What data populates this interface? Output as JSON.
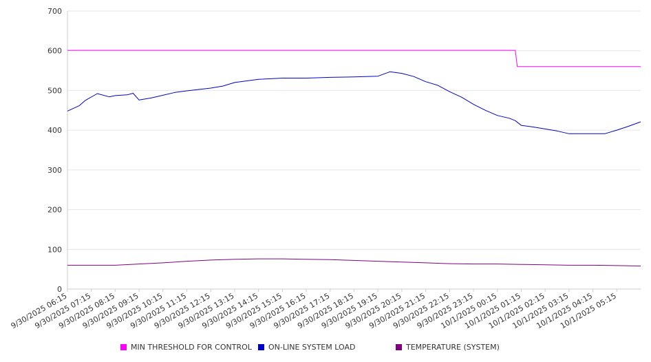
{
  "chart_data": {
    "type": "line",
    "title": "",
    "xlabel": "",
    "ylabel": "",
    "ylim": [
      0,
      700
    ],
    "yticks": [
      0,
      100,
      200,
      300,
      400,
      500,
      600,
      700
    ],
    "grid": "horizontal",
    "legend_position": "bottom",
    "x_range": [
      "9/30/2025 06:15",
      "10/1/2025 06:15"
    ],
    "categories": [
      "9/30/2025 06:15",
      "9/30/2025 07:15",
      "9/30/2025 08:15",
      "9/30/2025 09:15",
      "9/30/2025 10:15",
      "9/30/2025 11:15",
      "9/30/2025 12:15",
      "9/30/2025 13:15",
      "9/30/2025 14:15",
      "9/30/2025 15:15",
      "9/30/2025 16:15",
      "9/30/2025 17:15",
      "9/30/2025 18:15",
      "9/30/2025 19:15",
      "9/30/2025 20:15",
      "9/30/2025 21:15",
      "9/30/2025 22:15",
      "9/30/2025 23:15",
      "10/1/2025 00:15",
      "10/1/2025 01:15",
      "10/1/2025 02:15",
      "10/1/2025 03:15",
      "10/1/2025 04:15",
      "10/1/2025 05:15"
    ],
    "series": [
      {
        "name": "MIN THRESHOLD FOR CONTROL",
        "color": "#ff00ff",
        "points": [
          [
            "9/30/2025 06:15",
            601
          ],
          [
            "10/1/2025 01:00",
            601
          ],
          [
            "10/1/2025 01:05",
            560
          ],
          [
            "10/1/2025 06:15",
            560
          ]
        ]
      },
      {
        "name": "ON-LINE SYSTEM LOAD",
        "color": "#0000cc",
        "points": [
          [
            "9/30/2025 06:15",
            448
          ],
          [
            "9/30/2025 06:45",
            462
          ],
          [
            "9/30/2025 07:00",
            475
          ],
          [
            "9/30/2025 07:30",
            492
          ],
          [
            "9/30/2025 08:00",
            484
          ],
          [
            "9/30/2025 08:15",
            487
          ],
          [
            "9/30/2025 08:45",
            489
          ],
          [
            "9/30/2025 09:00",
            493
          ],
          [
            "9/30/2025 09:15",
            476
          ],
          [
            "9/30/2025 09:45",
            481
          ],
          [
            "9/30/2025 10:15",
            488
          ],
          [
            "9/30/2025 10:45",
            495
          ],
          [
            "9/30/2025 11:15",
            499
          ],
          [
            "9/30/2025 12:15",
            506
          ],
          [
            "9/30/2025 12:45",
            511
          ],
          [
            "9/30/2025 13:15",
            520
          ],
          [
            "9/30/2025 14:15",
            528
          ],
          [
            "9/30/2025 15:15",
            531
          ],
          [
            "9/30/2025 16:15",
            531
          ],
          [
            "9/30/2025 17:15",
            533
          ],
          [
            "9/30/2025 18:15",
            534
          ],
          [
            "9/30/2025 19:15",
            536
          ],
          [
            "9/30/2025 19:45",
            547
          ],
          [
            "9/30/2025 20:15",
            543
          ],
          [
            "9/30/2025 20:45",
            535
          ],
          [
            "9/30/2025 21:15",
            522
          ],
          [
            "9/30/2025 21:45",
            513
          ],
          [
            "9/30/2025 22:15",
            497
          ],
          [
            "9/30/2025 22:45",
            483
          ],
          [
            "9/30/2025 23:15",
            465
          ],
          [
            "9/30/2025 23:45",
            450
          ],
          [
            "10/1/2025 00:15",
            437
          ],
          [
            "10/1/2025 00:45",
            430
          ],
          [
            "10/1/2025 01:00",
            424
          ],
          [
            "10/1/2025 01:15",
            412
          ],
          [
            "10/1/2025 01:45",
            408
          ],
          [
            "10/1/2025 02:15",
            403
          ],
          [
            "10/1/2025 02:45",
            398
          ],
          [
            "10/1/2025 03:15",
            391
          ],
          [
            "10/1/2025 03:45",
            391
          ],
          [
            "10/1/2025 04:15",
            391
          ],
          [
            "10/1/2025 04:45",
            391
          ],
          [
            "10/1/2025 05:15",
            400
          ],
          [
            "10/1/2025 05:45",
            410
          ],
          [
            "10/1/2025 06:15",
            421
          ]
        ]
      },
      {
        "name": "TEMPERATURE (SYSTEM)",
        "color": "#800080",
        "points": [
          [
            "9/30/2025 06:15",
            60
          ],
          [
            "9/30/2025 08:15",
            60
          ],
          [
            "9/30/2025 09:15",
            63
          ],
          [
            "9/30/2025 10:15",
            66
          ],
          [
            "9/30/2025 11:15",
            70
          ],
          [
            "9/30/2025 12:15",
            73
          ],
          [
            "9/30/2025 13:15",
            75
          ],
          [
            "9/30/2025 14:15",
            76
          ],
          [
            "9/30/2025 15:15",
            76
          ],
          [
            "9/30/2025 16:15",
            75
          ],
          [
            "9/30/2025 17:15",
            74
          ],
          [
            "9/30/2025 18:15",
            72
          ],
          [
            "9/30/2025 19:15",
            70
          ],
          [
            "9/30/2025 20:15",
            68
          ],
          [
            "9/30/2025 21:15",
            66
          ],
          [
            "9/30/2025 22:15",
            64
          ],
          [
            "9/30/2025 23:15",
            63
          ],
          [
            "10/1/2025 00:15",
            63
          ],
          [
            "10/1/2025 01:15",
            62
          ],
          [
            "10/1/2025 02:15",
            61
          ],
          [
            "10/1/2025 03:15",
            60
          ],
          [
            "10/1/2025 04:15",
            60
          ],
          [
            "10/1/2025 05:15",
            59
          ],
          [
            "10/1/2025 06:15",
            58
          ]
        ]
      }
    ]
  }
}
